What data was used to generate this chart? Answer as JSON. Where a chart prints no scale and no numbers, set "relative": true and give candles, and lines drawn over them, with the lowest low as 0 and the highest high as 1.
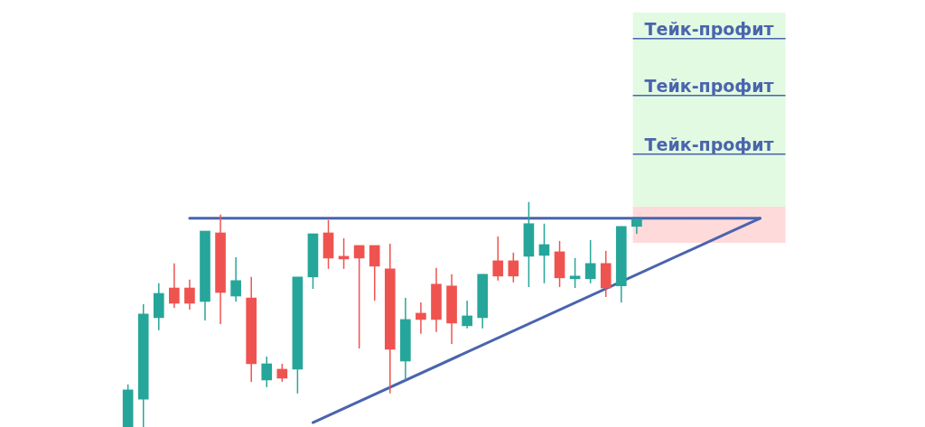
{
  "chart_data": {
    "type": "candlestick",
    "relative": true,
    "tick_labels": false,
    "categories": [
      null,
      null,
      null,
      null,
      null,
      null,
      null,
      null,
      null,
      null,
      null,
      null,
      null,
      null,
      null,
      null,
      null,
      null,
      null,
      null,
      null,
      null,
      null,
      null,
      null,
      null,
      null,
      null,
      null,
      null,
      null,
      null,
      null,
      null,
      null,
      null,
      null,
      null,
      null,
      null,
      null,
      null
    ],
    "series": [
      {
        "ohlc": [
          [
            0,
            0.189,
            0,
            0.165
          ],
          [
            0.124,
            0.546,
            0,
            0.502
          ],
          [
            0.486,
            0.639,
            0.43,
            0.594
          ],
          [
            0.618,
            0.727,
            0.53,
            0.55
          ],
          [
            0.618,
            0.655,
            0.522,
            0.55
          ],
          [
            0.558,
            0.871,
            0.474,
            0.871
          ],
          [
            0.863,
            0.944,
            0.458,
            0.598
          ],
          [
            0.582,
            0.755,
            0.558,
            0.651
          ],
          [
            0.574,
            0.667,
            0.201,
            0.281
          ],
          [
            0.209,
            0.313,
            0.177,
            0.281
          ],
          [
            0.257,
            0.281,
            0.201,
            0.217
          ],
          [
            0.257,
            0.667,
            0.149,
            0.667
          ],
          [
            0.667,
            0.859,
            0.614,
            0.859
          ],
          [
            0.863,
            0.92,
            0.703,
            0.751
          ],
          [
            0.759,
            0.839,
            0.703,
            0.747
          ],
          [
            0.807,
            0.807,
            0.349,
            0.751
          ],
          [
            0.807,
            0.807,
            0.562,
            0.715
          ],
          [
            0.703,
            0.815,
            0.149,
            0.345
          ],
          [
            0.293,
            0.574,
            0.209,
            0.478
          ],
          [
            0.506,
            0.554,
            0.414,
            0.478
          ],
          [
            0.635,
            0.707,
            0.422,
            0.478
          ],
          [
            0.627,
            0.679,
            0.369,
            0.462
          ],
          [
            0.45,
            0.562,
            0.438,
            0.494
          ],
          [
            0.486,
            0.679,
            0.438,
            0.679
          ],
          [
            0.739,
            0.847,
            0.651,
            0.671
          ],
          [
            0.739,
            0.775,
            0.643,
            0.671
          ],
          [
            0.759,
            1,
            0.622,
            0.904
          ],
          [
            0.763,
            0.904,
            0.639,
            0.811
          ],
          [
            0.779,
            0.827,
            0.622,
            0.663
          ],
          [
            0.659,
            0.751,
            0.618,
            0.671
          ],
          [
            0.659,
            0.831,
            0.639,
            0.727
          ],
          [
            0.727,
            0.783,
            0.578,
            0.618
          ],
          [
            0.627,
            0.892,
            0.554,
            0.892
          ],
          [
            0.892,
            0.924,
            0.859,
            0.924
          ],
          null,
          null,
          null,
          null,
          null,
          null,
          null,
          null
        ],
        "colors": [
          "#26a69a",
          "#26a69a",
          "#26a69a",
          "#ef5350",
          "#ef5350",
          "#26a69a",
          "#ef5350",
          "#26a69a",
          "#ef5350",
          "#26a69a",
          "#ef5350",
          "#26a69a",
          "#26a69a",
          "#ef5350",
          "#ef5350",
          "#ef5350",
          "#ef5350",
          "#ef5350",
          "#26a69a",
          "#ef5350",
          "#ef5350",
          "#ef5350",
          "#26a69a",
          "#26a69a",
          "#ef5350",
          "#ef5350",
          "#26a69a",
          "#26a69a",
          "#ef5350",
          "#26a69a",
          "#26a69a",
          "#ef5350",
          "#26a69a",
          "#26a69a",
          null,
          null,
          null,
          null,
          null,
          null,
          null,
          null
        ]
      },
      {
        "type": "line",
        "color": "#4a64ae",
        "values": [
          null,
          null,
          null,
          null,
          0.928,
          null,
          null,
          null,
          null,
          null,
          null,
          null,
          null,
          null,
          null,
          null,
          null,
          null,
          null,
          null,
          null,
          null,
          null,
          null,
          null,
          null,
          null,
          null,
          null,
          null,
          null,
          null,
          null,
          null,
          null,
          null,
          null,
          null,
          null,
          null,
          null,
          0.928
        ]
      },
      {
        "type": "line",
        "color": "#4a64ae",
        "values": [
          null,
          null,
          null,
          null,
          null,
          null,
          null,
          null,
          null,
          null,
          null,
          null,
          0.02,
          null,
          null,
          null,
          null,
          null,
          null,
          null,
          null,
          null,
          null,
          null,
          null,
          null,
          null,
          null,
          null,
          null,
          null,
          null,
          null,
          null,
          null,
          null,
          null,
          null,
          null,
          null,
          null,
          0.928
        ]
      }
    ],
    "bands": [
      {
        "axis": "y",
        "from": 0.819,
        "to": 0.98,
        "color": "#ffdada"
      },
      {
        "axis": "y",
        "from": 0.98,
        "to": 1.843,
        "color": "#e1fae1"
      }
    ],
    "ref_lines": [
      {
        "axis": "y",
        "value": 1.727,
        "label": "Тейк-профит",
        "color": "#4a64ae"
      },
      {
        "axis": "y",
        "value": 1.474,
        "label": "Тейк-профит",
        "color": "#4a64ae"
      },
      {
        "axis": "y",
        "value": 1.213,
        "label": "Тейк-профит",
        "color": "#4a64ae"
      }
    ]
  }
}
